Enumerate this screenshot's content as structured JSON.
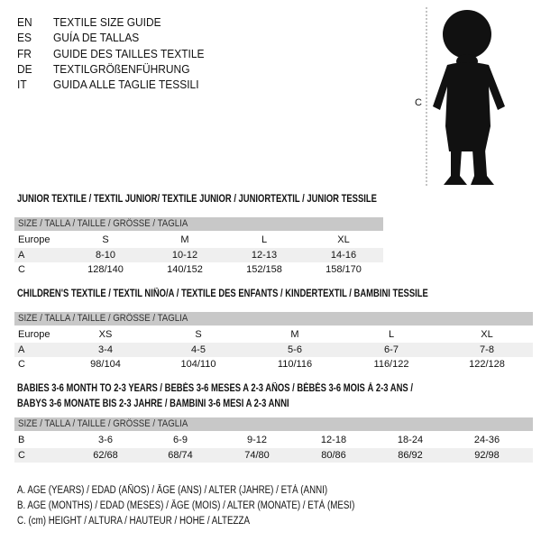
{
  "languages": [
    {
      "code": "EN",
      "text": "TEXTILE SIZE GUIDE"
    },
    {
      "code": "ES",
      "text": "GUÍA DE TALLAS"
    },
    {
      "code": "FR",
      "text": "GUIDE DES TAILLES TEXTILE"
    },
    {
      "code": "DE",
      "text": "TEXTILGRÖßENFÜHRUNG"
    },
    {
      "code": "IT",
      "text": "GUIDA ALLE TAGLIE TESSILI"
    }
  ],
  "figure": {
    "label": "C"
  },
  "size_header": "SIZE / TALLA / TAILLE / GRÖSSE / TAGLIA",
  "junior": {
    "title": "JUNIOR TEXTILE / TEXTIL JUNIOR/ TEXTILE JUNIOR / JUNIORTEXTIL / JUNIOR TESSILE",
    "rows": [
      {
        "label": "Europe",
        "values": [
          "S",
          "M",
          "L",
          "XL"
        ]
      },
      {
        "label": "A",
        "values": [
          "8-10",
          "10-12",
          "12-13",
          "14-16"
        ]
      },
      {
        "label": "C",
        "values": [
          "128/140",
          "140/152",
          "152/158",
          "158/170"
        ]
      }
    ]
  },
  "children": {
    "title": "CHILDREN'S TEXTILE / TEXTIL NIÑO/A / TEXTILE DES ENFANTS / KINDERTEXTIL / BAMBINI TESSILE",
    "rows": [
      {
        "label": "Europe",
        "values": [
          "XS",
          "S",
          "M",
          "L",
          "XL"
        ]
      },
      {
        "label": "A",
        "values": [
          "3-4",
          "4-5",
          "5-6",
          "6-7",
          "7-8"
        ]
      },
      {
        "label": "C",
        "values": [
          "98/104",
          "104/110",
          "110/116",
          "116/122",
          "122/128"
        ]
      }
    ]
  },
  "babies": {
    "title_line1": "BABIES 3-6 MONTH TO 2-3 YEARS / BEBÉS 3-6 MESES A 2-3 AÑOS / BÉBÉS 3-6 MOIS À 2-3 ANS /",
    "title_line2": "BABYS 3-6 MONATE BIS 2-3 JAHRE / BAMBINI 3-6 MESI A 2-3 ANNI",
    "rows": [
      {
        "label": "B",
        "values": [
          "3-6",
          "6-9",
          "9-12",
          "12-18",
          "18-24",
          "24-36"
        ]
      },
      {
        "label": "C",
        "values": [
          "62/68",
          "68/74",
          "74/80",
          "80/86",
          "86/92",
          "92/98"
        ]
      }
    ]
  },
  "legend": [
    "A. AGE (YEARS) / EDAD (AÑOS) / ÂGE (ANS) / ALTER (JAHRE) / ETÀ (ANNI)",
    "B. AGE (MONTHS) / EDAD (MESES) / ÂGE (MOIS) / ALTER (MONATE) / ETÀ (MESI)",
    "C. (cm) HEIGHT / ALTURA / HAUTEUR / HÖHE / ALTEZZA"
  ]
}
